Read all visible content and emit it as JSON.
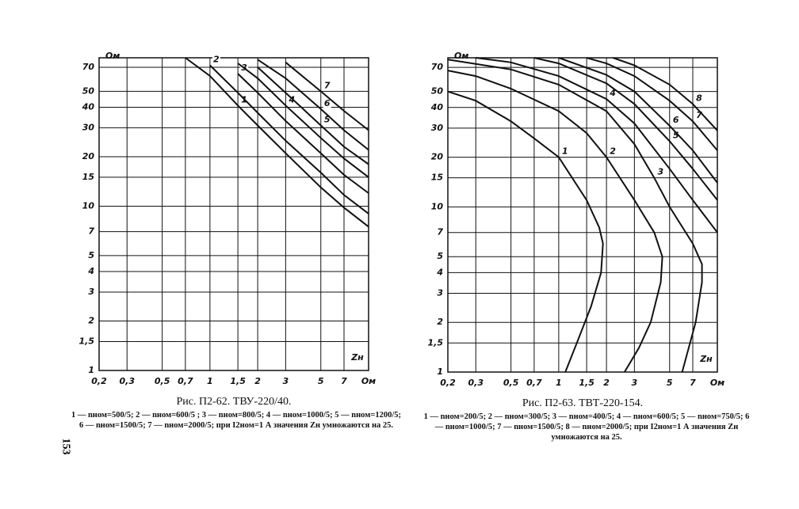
{
  "page_number": "153",
  "chart_data": [
    {
      "type": "line",
      "title": "Рис. П2-62. ТВУ-220/40.",
      "caption": "1 — nном=500/5; 2 — nном=600/5 ; 3 — nном=800/5; 4 — nном=1000/5; 5 — nном=1200/5; 6 — nном=1500/5; 7 — nном=2000/5; при I2ном=1 А значения Zн умножаются на 25.",
      "x_label": "Zн",
      "y_label": "Ом",
      "log_scale": true,
      "grid": true,
      "color": "#111111",
      "xlim": [
        0.2,
        10
      ],
      "ylim": [
        1,
        80
      ],
      "xticks": [
        {
          "value": 0.2,
          "label": "0,2"
        },
        {
          "value": 0.3,
          "label": "0,3"
        },
        {
          "value": 0.5,
          "label": "0,5"
        },
        {
          "value": 0.7,
          "label": "0,7"
        },
        1,
        {
          "value": 1.5,
          "label": "1,5"
        },
        2,
        3,
        5,
        7,
        {
          "value": 10,
          "label": "Ом"
        }
      ],
      "yticks": [
        1,
        {
          "value": 1.5,
          "label": "1,5"
        },
        2,
        3,
        4,
        5,
        7,
        10,
        15,
        20,
        30,
        40,
        50,
        70
      ],
      "x": [
        0.5,
        0.7,
        1,
        1.5,
        2,
        3,
        5,
        7,
        10
      ],
      "series": [
        {
          "name": "1",
          "values": [
            null,
            80,
            62,
            41,
            31,
            21,
            13,
            9.8,
            7.5
          ]
        },
        {
          "name": "2",
          "values": [
            null,
            null,
            72,
            49,
            37,
            25,
            16,
            11.7,
            9
          ]
        },
        {
          "name": "3",
          "values": [
            null,
            null,
            null,
            64,
            49,
            33,
            21,
            15.5,
            12
          ]
        },
        {
          "name": "4",
          "values": [
            null,
            null,
            null,
            74,
            60,
            41,
            26,
            19.5,
            15
          ]
        },
        {
          "name": "5",
          "values": [
            null,
            null,
            null,
            null,
            70,
            49,
            31,
            23,
            18
          ]
        },
        {
          "name": "6",
          "values": [
            null,
            null,
            null,
            null,
            78,
            60,
            39,
            29,
            22
          ]
        },
        {
          "name": "7",
          "values": [
            null,
            null,
            null,
            null,
            null,
            75,
            50,
            38,
            29
          ]
        }
      ]
    },
    {
      "type": "line",
      "title": "Рис. П2-63. ТВТ-220-154.",
      "caption": "1 — nном=200/5; 2 — nном=300/5; 3 — nном=400/5; 4 — nном=600/5; 5 — nном=750/5; 6 — nном=1000/5; 7 — nном=1500/5; 8 — nном=2000/5; при I2ном=1 А значения Zн умножаются на 25.",
      "x_label": "Zн",
      "y_label": "Ом",
      "log_scale": true,
      "grid": true,
      "color": "#111111",
      "xlim": [
        0.2,
        10
      ],
      "ylim": [
        1,
        80
      ],
      "xticks": [
        {
          "value": 0.2,
          "label": "0,2"
        },
        {
          "value": 0.3,
          "label": "0,3"
        },
        {
          "value": 0.5,
          "label": "0,5"
        },
        {
          "value": 0.7,
          "label": "0,7"
        },
        1,
        {
          "value": 1.5,
          "label": "1,5"
        },
        2,
        3,
        5,
        7,
        {
          "value": 10,
          "label": "Ом"
        }
      ],
      "yticks": [
        1,
        {
          "value": 1.5,
          "label": "1,5"
        },
        2,
        3,
        4,
        5,
        7,
        10,
        15,
        20,
        30,
        40,
        50,
        70
      ],
      "series": [
        {
          "name": "1",
          "x": [
            0.2,
            0.3,
            0.5,
            0.7,
            1,
            1.5,
            1.8,
            1.9,
            1.85,
            1.6,
            1.3,
            1.1
          ],
          "values": [
            50,
            44,
            33,
            26,
            20,
            11,
            7.5,
            6,
            4,
            2.5,
            1.5,
            1
          ]
        },
        {
          "name": "2",
          "x": [
            0.2,
            0.3,
            0.5,
            1,
            1.5,
            2,
            3,
            4,
            4.5,
            4.4,
            3.8,
            3.2,
            2.6
          ],
          "values": [
            67,
            62,
            52,
            38,
            28,
            20,
            11,
            7,
            5,
            3.5,
            2,
            1.4,
            1
          ]
        },
        {
          "name": "3",
          "x": [
            0.2,
            0.5,
            1,
            2,
            3,
            4,
            5,
            7,
            8,
            8,
            7.3,
            6
          ],
          "values": [
            78,
            68,
            55,
            38,
            24,
            15,
            10,
            6,
            4.5,
            3.5,
            2,
            1
          ]
        },
        {
          "name": "4",
          "x": [
            0.3,
            0.5,
            1,
            2,
            3,
            5,
            7,
            10
          ],
          "values": [
            80,
            75,
            62,
            45,
            32,
            17,
            11,
            7
          ]
        },
        {
          "name": "5",
          "x": [
            0.7,
            1,
            2,
            3,
            5,
            7,
            10
          ],
          "values": [
            80,
            74,
            56,
            42,
            25,
            17,
            11
          ]
        },
        {
          "name": "6",
          "x": [
            1,
            2,
            3,
            5,
            7,
            10
          ],
          "values": [
            80,
            63,
            50,
            31,
            22,
            14
          ]
        },
        {
          "name": "7",
          "x": [
            1.5,
            2,
            3,
            5,
            7,
            10
          ],
          "values": [
            80,
            74,
            62,
            44,
            33,
            22
          ]
        },
        {
          "name": "8",
          "x": [
            2.2,
            3,
            5,
            7,
            10
          ],
          "values": [
            80,
            72,
            55,
            42,
            29
          ]
        }
      ]
    }
  ]
}
